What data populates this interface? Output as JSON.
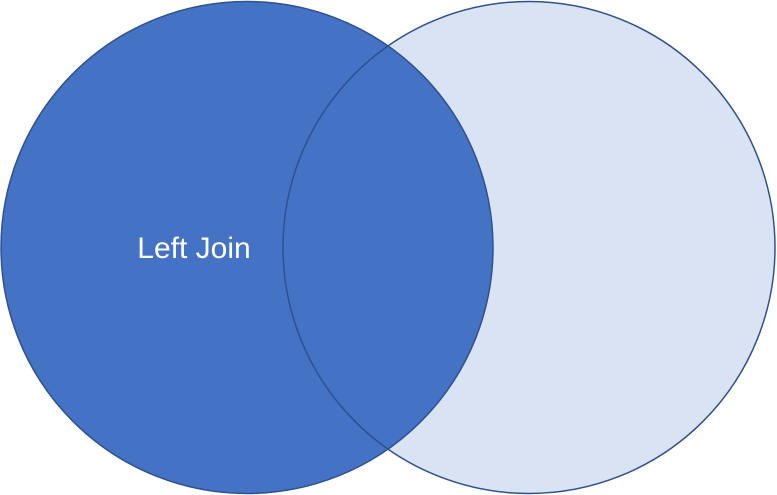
{
  "diagram": {
    "label": "Left Join",
    "colors": {
      "left_fill": "#4472c4",
      "right_fill": "#dae3f3",
      "outline": "#2f528f",
      "label_text": "#ffffff",
      "background": "#ffffff"
    }
  }
}
